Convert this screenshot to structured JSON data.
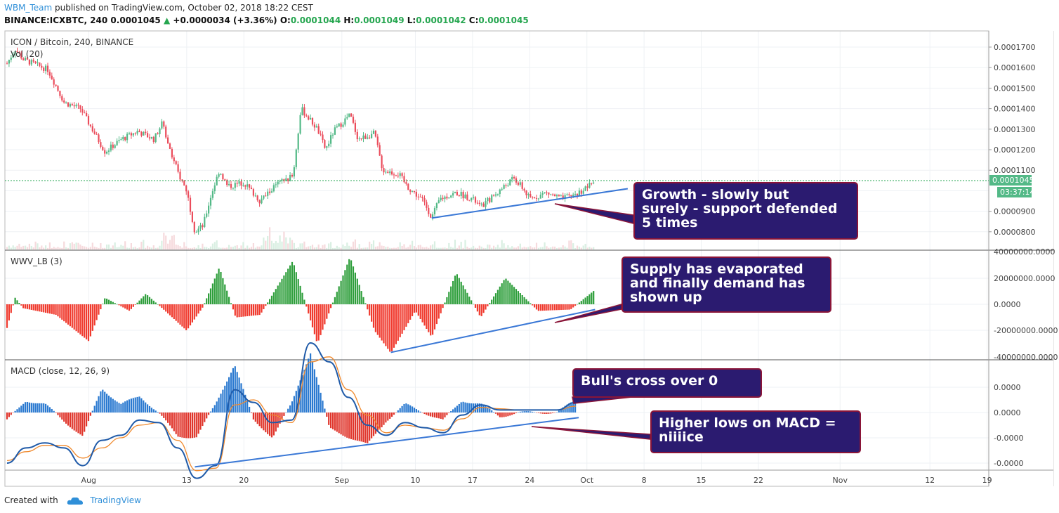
{
  "header": {
    "author": "WBM_Team",
    "published_text": " published on TradingView.com, October 02, 2018 18:22 CEST",
    "symbol": "BINANCE:ICXBTC, 240",
    "last": "0.0001045",
    "change": "+0.0000034 (+3.36%)",
    "o_label": "O:",
    "o_value": "0.0001044",
    "h_label": "H:",
    "h_value": "0.0001049",
    "l_label": "L:",
    "l_value": "0.0001042",
    "c_label": "C:",
    "c_value": "0.0001045"
  },
  "footer": {
    "created_with": "Created with",
    "brand": "TradingView"
  },
  "colors": {
    "up": "#53b987",
    "down": "#eb4d5c",
    "trend": "#3a78d6",
    "macd": "#1f5aa8",
    "signal": "#f0892c",
    "annotation_bg": "#2b1b70",
    "annotation_border": "#8a1538"
  },
  "chart_data": [
    {
      "type": "candlestick",
      "title": "ICON / Bitcoin, 240, BINANCE",
      "overlay_label": "Vol (20)",
      "y_ticks": [
        "0.0001700",
        "0.0001600",
        "0.0001500",
        "0.0001400",
        "0.0001300",
        "0.0001200",
        "0.0001100",
        "0.0000900",
        "0.0000800"
      ],
      "ylim": [
        7.5e-05,
        0.000175
      ],
      "last_price_label": "0.0001045",
      "countdown_label": "03:37:14",
      "price_anchors": [
        {
          "date": "2018-07-22",
          "price": 0.000162
        },
        {
          "date": "2018-07-23",
          "price": 0.000169
        },
        {
          "date": "2018-07-24",
          "price": 0.000164
        },
        {
          "date": "2018-07-27",
          "price": 0.000159
        },
        {
          "date": "2018-07-29",
          "price": 0.000143
        },
        {
          "date": "2018-07-31",
          "price": 0.00014
        },
        {
          "date": "2018-08-03",
          "price": 0.000119
        },
        {
          "date": "2018-08-05",
          "price": 0.000125
        },
        {
          "date": "2018-08-07",
          "price": 0.000129
        },
        {
          "date": "2018-08-09",
          "price": 0.000125
        },
        {
          "date": "2018-08-10",
          "price": 0.000133
        },
        {
          "date": "2018-08-11",
          "price": 0.00012
        },
        {
          "date": "2018-08-12",
          "price": 0.000108
        },
        {
          "date": "2018-08-13",
          "price": 0.0001
        },
        {
          "date": "2018-08-14",
          "price": 8e-05
        },
        {
          "date": "2018-08-15",
          "price": 8.3e-05
        },
        {
          "date": "2018-08-16",
          "price": 9.8e-05
        },
        {
          "date": "2018-08-17",
          "price": 0.00011
        },
        {
          "date": "2018-08-18",
          "price": 0.000102
        },
        {
          "date": "2018-08-20",
          "price": 0.000104
        },
        {
          "date": "2018-08-22",
          "price": 9.5e-05
        },
        {
          "date": "2018-08-24",
          "price": 0.000103
        },
        {
          "date": "2018-08-26",
          "price": 0.000107
        },
        {
          "date": "2018-08-27",
          "price": 0.00014
        },
        {
          "date": "2018-08-29",
          "price": 0.00013
        },
        {
          "date": "2018-08-30",
          "price": 0.00012
        },
        {
          "date": "2018-08-31",
          "price": 0.000129
        },
        {
          "date": "2018-09-02",
          "price": 0.000137
        },
        {
          "date": "2018-09-03",
          "price": 0.000125
        },
        {
          "date": "2018-09-05",
          "price": 0.000128
        },
        {
          "date": "2018-09-06",
          "price": 0.00011
        },
        {
          "date": "2018-09-08",
          "price": 0.000108
        },
        {
          "date": "2018-09-09",
          "price": 0.000102
        },
        {
          "date": "2018-09-11",
          "price": 9.5e-05
        },
        {
          "date": "2018-09-12",
          "price": 8.7e-05
        },
        {
          "date": "2018-09-13",
          "price": 9.6e-05
        },
        {
          "date": "2018-09-15",
          "price": 9.9e-05
        },
        {
          "date": "2018-09-17",
          "price": 9.6e-05
        },
        {
          "date": "2018-09-18",
          "price": 9.2e-05
        },
        {
          "date": "2018-09-20",
          "price": 9.9e-05
        },
        {
          "date": "2018-09-22",
          "price": 0.000106
        },
        {
          "date": "2018-09-23",
          "price": 0.000102
        },
        {
          "date": "2018-09-24",
          "price": 9.6e-05
        },
        {
          "date": "2018-09-26",
          "price": 9.9e-05
        },
        {
          "date": "2018-09-28",
          "price": 9.6e-05
        },
        {
          "date": "2018-09-30",
          "price": 9.9e-05
        },
        {
          "date": "2018-10-02",
          "price": 0.0001045
        }
      ],
      "support_line": {
        "from": {
          "date": "2018-09-12",
          "price": 8.67e-05
        },
        "to": {
          "date": "2018-10-06",
          "price": 0.000101
        }
      }
    },
    {
      "type": "histogram",
      "title": "WWV_LB (3)",
      "y_ticks": [
        "40000000.0000",
        "20000000.0000",
        "0.0000",
        "-20000000.0000",
        "-40000000.0000"
      ],
      "ylim": [
        -40000000,
        40000000
      ],
      "value_anchors": [
        {
          "date": "2018-07-22",
          "value": -18000000
        },
        {
          "date": "2018-07-23",
          "value": 5000000
        },
        {
          "date": "2018-07-24",
          "value": -3000000
        },
        {
          "date": "2018-07-28",
          "value": -8000000
        },
        {
          "date": "2018-08-01",
          "value": -28000000
        },
        {
          "date": "2018-08-03",
          "value": 5000000
        },
        {
          "date": "2018-08-06",
          "value": -5000000
        },
        {
          "date": "2018-08-08",
          "value": 8000000
        },
        {
          "date": "2018-08-10",
          "value": -3000000
        },
        {
          "date": "2018-08-13",
          "value": -20000000
        },
        {
          "date": "2018-08-15",
          "value": -2000000
        },
        {
          "date": "2018-08-17",
          "value": 28000000
        },
        {
          "date": "2018-08-19",
          "value": -10000000
        },
        {
          "date": "2018-08-22",
          "value": -8000000
        },
        {
          "date": "2018-08-26",
          "value": 33000000
        },
        {
          "date": "2018-08-29",
          "value": -30000000
        },
        {
          "date": "2018-09-02",
          "value": 36000000
        },
        {
          "date": "2018-09-05",
          "value": -20000000
        },
        {
          "date": "2018-09-07",
          "value": -37000000
        },
        {
          "date": "2018-09-10",
          "value": -5000000
        },
        {
          "date": "2018-09-12",
          "value": -25000000
        },
        {
          "date": "2018-09-15",
          "value": 24000000
        },
        {
          "date": "2018-09-18",
          "value": -10000000
        },
        {
          "date": "2018-09-21",
          "value": 20000000
        },
        {
          "date": "2018-09-25",
          "value": -5000000
        },
        {
          "date": "2018-09-29",
          "value": -4000000
        },
        {
          "date": "2018-10-02",
          "value": 11000000
        }
      ],
      "trend_line": {
        "from": {
          "date": "2018-09-07",
          "value": -36500000
        },
        "to": {
          "date": "2018-10-02",
          "value": -4000000
        }
      }
    },
    {
      "type": "line",
      "title": "MACD (close, 12, 26, 9)",
      "y_ticks": [
        "0.0000",
        "0.0000",
        "0.0000",
        "-0.0000",
        "-0.0000"
      ],
      "series": [
        {
          "key": "macd",
          "values": [
            -4e-06,
            -2.8e-06,
            -2.4e-06,
            -2.8e-06,
            -4.2e-06,
            -2.2e-06,
            -1.8e-06,
            -6e-07,
            -8e-07,
            -2.8e-06,
            -5.2e-06,
            -4.2e-06,
            1.8e-06,
            8e-07,
            -8e-07,
            -6e-07,
            5.5e-06,
            4e-06,
            1.2e-06,
            -1e-06,
            -1.8e-06,
            -8e-07,
            -1.2e-06,
            -1.6e-06,
            -2e-07,
            6e-07,
            2e-07,
            2e-07,
            2e-07,
            2e-07,
            8e-07
          ]
        },
        {
          "key": "signal",
          "values": [
            -3.8e-06,
            -3.1e-06,
            -2.6e-06,
            -2.6e-06,
            -3.6e-06,
            -2.8e-06,
            -2e-06,
            -1e-06,
            -8e-07,
            -2.2e-06,
            -4.6e-06,
            -4.4e-06,
            6e-07,
            1e-06,
            -2e-07,
            -8e-07,
            4e-06,
            4.4e-06,
            1.8e-06,
            -2e-07,
            -1.6e-06,
            -1e-06,
            -1.2e-06,
            -1.4e-06,
            -5e-07,
            4e-07,
            3e-07,
            2e-07,
            2e-07,
            2e-07,
            5e-07
          ]
        }
      ],
      "trend_line": {
        "from": {
          "date": "2018-08-14",
          "value": -4.3e-06
        },
        "to": {
          "date": "2018-09-30",
          "value": -4e-07
        }
      }
    }
  ],
  "x_axis": {
    "ticks": [
      {
        "date": "2018-08-01",
        "label": "Aug"
      },
      {
        "date": "2018-08-13",
        "label": "13"
      },
      {
        "date": "2018-08-20",
        "label": "20"
      },
      {
        "date": "2018-09-01",
        "label": "Sep"
      },
      {
        "date": "2018-09-10",
        "label": "10"
      },
      {
        "date": "2018-09-17",
        "label": "17"
      },
      {
        "date": "2018-09-24",
        "label": "24"
      },
      {
        "date": "2018-10-01",
        "label": "Oct"
      },
      {
        "date": "2018-10-08",
        "label": "8"
      },
      {
        "date": "2018-10-15",
        "label": "15"
      },
      {
        "date": "2018-10-22",
        "label": "22"
      },
      {
        "date": "2018-11-01",
        "label": "Nov"
      },
      {
        "date": "2018-11-12",
        "label": "12"
      },
      {
        "date": "2018-11-19",
        "label": "19"
      }
    ]
  },
  "annotations": [
    {
      "key": "growth",
      "text": "Growth - slowly but\nsurely - support defended\n5 times"
    },
    {
      "key": "supply",
      "text": "Supply has evaporated\nand finally demand has\nshown up"
    },
    {
      "key": "bull",
      "text": "Bull's cross over 0"
    },
    {
      "key": "higher",
      "text": "Higher lows on MACD =\nniiiice"
    }
  ]
}
